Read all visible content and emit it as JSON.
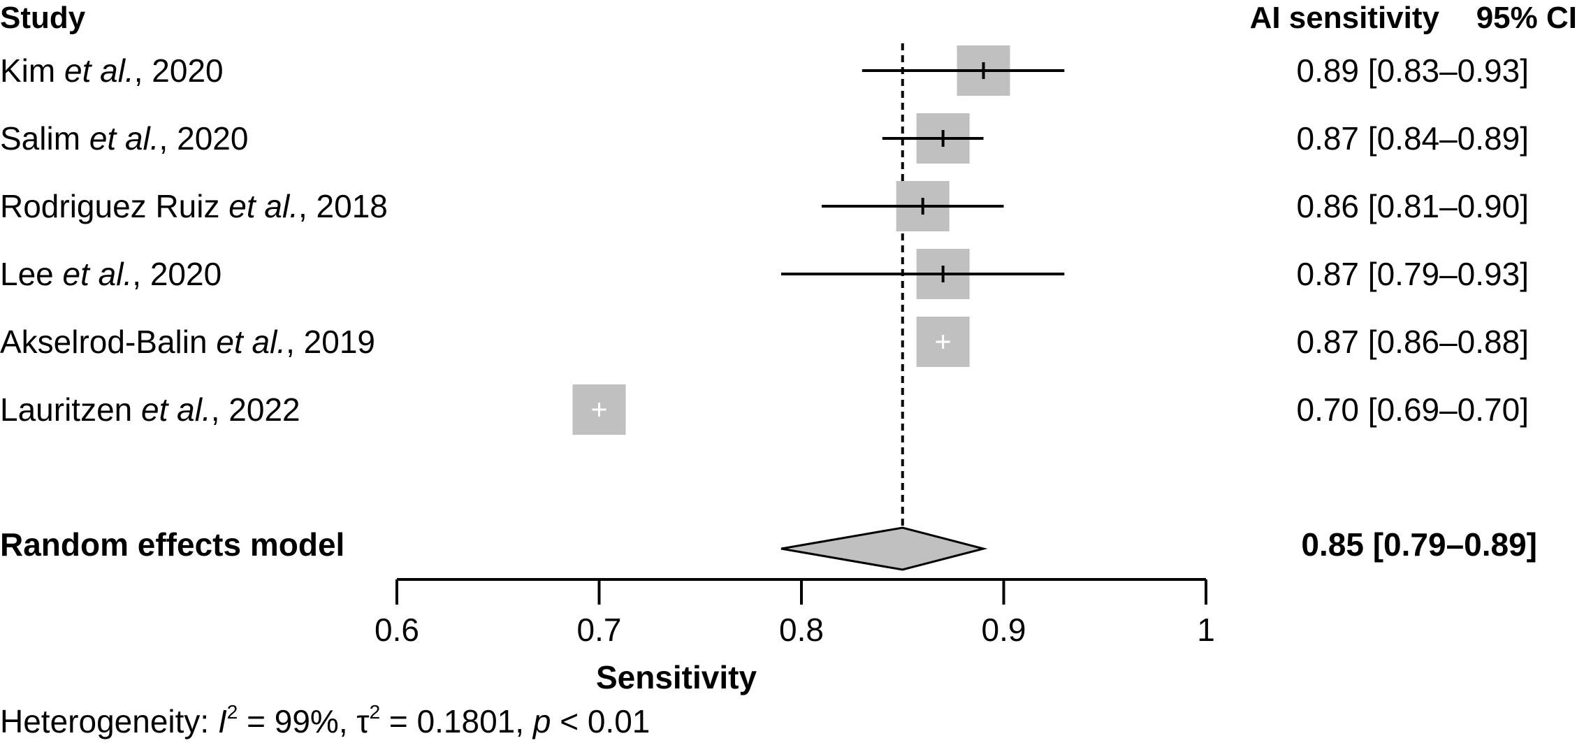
{
  "chart_data": {
    "type": "forest",
    "headers": {
      "study": "Study",
      "estimate": "AI sensitivity",
      "ci": "95% CI"
    },
    "studies": [
      {
        "name": "Kim",
        "etal": "et al.",
        "year": ", 2020",
        "estimate": 0.89,
        "lower": 0.83,
        "upper": 0.93,
        "label": "0.89 [0.83–0.93]",
        "weight_box_color": "#c0c0c0"
      },
      {
        "name": "Salim",
        "etal": "et al.",
        "year": ", 2020",
        "estimate": 0.87,
        "lower": 0.84,
        "upper": 0.89,
        "label": "0.87 [0.84–0.89]",
        "weight_box_color": "#c0c0c0"
      },
      {
        "name": "Rodriguez Ruiz",
        "etal": "et al.",
        "year": ", 2018",
        "estimate": 0.86,
        "lower": 0.81,
        "upper": 0.9,
        "label": "0.86 [0.81–0.90]",
        "weight_box_color": "#c0c0c0"
      },
      {
        "name": "Lee",
        "etal": "et al.",
        "year": ", 2020",
        "estimate": 0.87,
        "lower": 0.79,
        "upper": 0.93,
        "label": "0.87 [0.79–0.93]",
        "weight_box_color": "#c0c0c0"
      },
      {
        "name": "Akselrod-Balin",
        "etal": "et al.",
        "year": ", 2019",
        "estimate": 0.87,
        "lower": 0.86,
        "upper": 0.88,
        "label": "0.87 [0.86–0.88]",
        "weight_box_color": "#c0c0c0"
      },
      {
        "name": "Lauritzen",
        "etal": "et al.",
        "year": ", 2022",
        "estimate": 0.7,
        "lower": 0.69,
        "upper": 0.7,
        "label": "0.70 [0.69–0.70]",
        "weight_box_color": "#c0c0c0"
      }
    ],
    "pooled": {
      "name": "Random effects model",
      "estimate": 0.85,
      "lower": 0.79,
      "upper": 0.89,
      "label": "0.85 [0.79–0.89]",
      "color": "#c0c0c0"
    },
    "xlim": [
      0.6,
      1.0
    ],
    "xticks": [
      0.6,
      0.7,
      0.8,
      0.9,
      1.0
    ],
    "xtick_labels": [
      "0.6",
      "0.7",
      "0.8",
      "0.9",
      "1"
    ],
    "xlabel": "Sensitivity",
    "reference_line": 0.85,
    "heterogeneity": {
      "prefix": "Heterogeneity: ",
      "i2_symbol": "I",
      "i2_sup": "2",
      "i2_value": " = 99%, ",
      "tau_symbol": "τ",
      "tau_sup": "2",
      "tau_value": " = 0.1801, ",
      "p_symbol": "p",
      "p_value": " < 0.01"
    }
  }
}
